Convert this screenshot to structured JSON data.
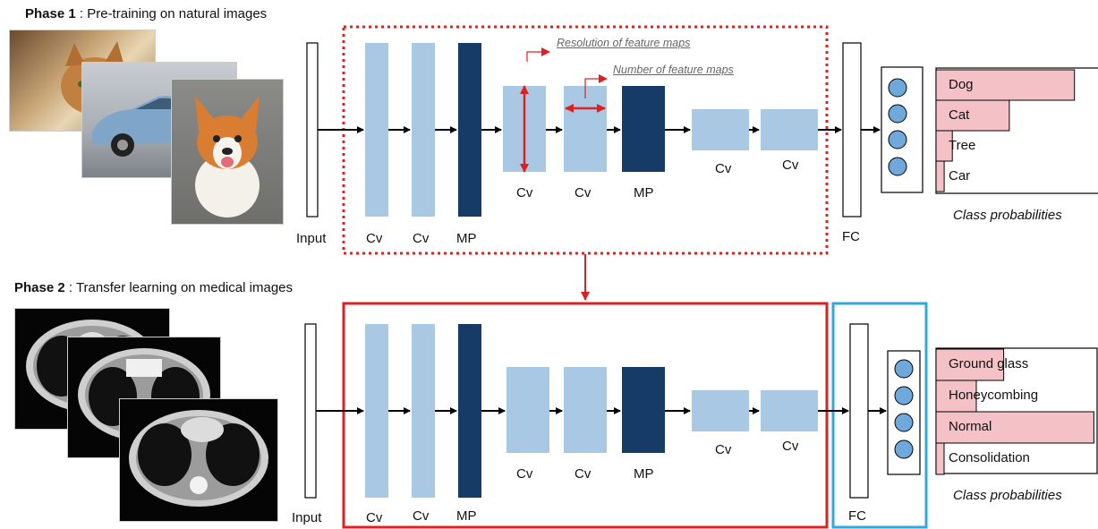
{
  "phase1": {
    "title_bold": "Phase 1",
    "title_rest": " : Pre-training on natural images",
    "images": [
      "cat-photo",
      "car-photo",
      "dog-photo"
    ],
    "input_label": "Input",
    "layers": [
      "Cv",
      "Cv",
      "MP",
      "Cv",
      "Cv",
      "MP",
      "Cv",
      "Cv"
    ],
    "fc_label": "FC",
    "note_resolution": "Resolution of feature maps",
    "note_number": "Number of feature maps",
    "classes": [
      {
        "label": "Dog",
        "prob": 0.85
      },
      {
        "label": "Cat",
        "prob": 0.45
      },
      {
        "label": "Tree",
        "prob": 0.1
      },
      {
        "label": "Car",
        "prob": 0.05
      }
    ],
    "caption": "Class probabilities"
  },
  "phase2": {
    "title_bold": "Phase 2",
    "title_rest": " : Transfer learning on medical images",
    "images": [
      "ct-scan-1",
      "ct-scan-2",
      "ct-scan-3"
    ],
    "input_label": "Input",
    "layers": [
      "Cv",
      "Cv",
      "MP",
      "Cv",
      "Cv",
      "MP",
      "Cv",
      "Cv"
    ],
    "fc_label": "FC",
    "classes": [
      {
        "label": "Ground glass",
        "prob": 0.42
      },
      {
        "label": "Honeycombing",
        "prob": 0.25
      },
      {
        "label": "Normal",
        "prob": 0.98
      },
      {
        "label": "Consolidation",
        "prob": 0.05
      }
    ],
    "caption": "Class probabilities"
  },
  "colors": {
    "conv": "#a8c8e4",
    "pool": "#163b66",
    "frozen_box": "#e02020",
    "trainable_box": "#2fa8dc",
    "bar": "#f4c2c6",
    "node": "#6fa8da"
  }
}
